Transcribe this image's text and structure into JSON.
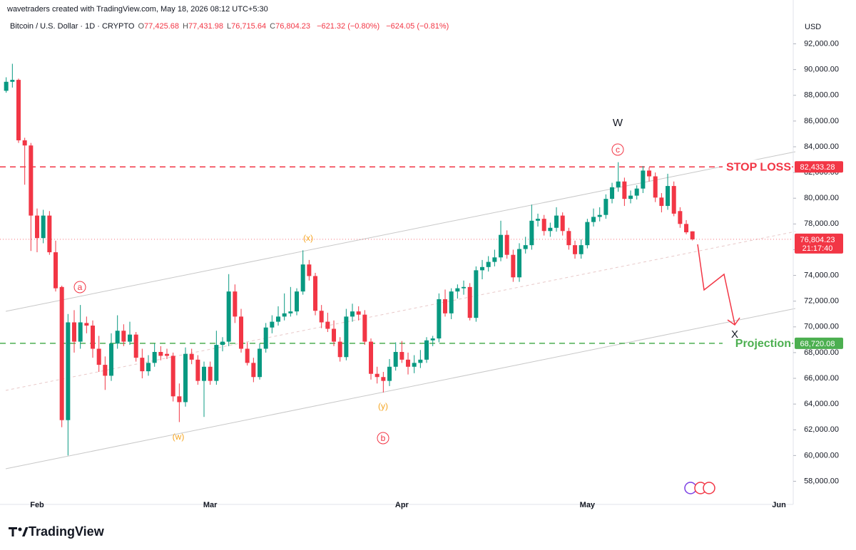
{
  "chart_data": {
    "type": "candlestick",
    "credit": "wavetraders created with TradingView.com, May 18, 2026 08:12 UTC+5:30",
    "symbol": "Bitcoin / U.S. Dollar · 1D · CRYPTO",
    "ohlc_letters": [
      "O",
      "H",
      "L",
      "C"
    ],
    "ohlc_labels": [
      "77,425.68",
      "77,431.98",
      "76,715.64",
      "76,804.23"
    ],
    "change_labels": [
      "−621.32 (−0.80%)",
      "−624.05 (−0.81%)"
    ],
    "currency": "USD",
    "up_color": "#089981",
    "down_color": "#f23645",
    "grid": false,
    "categories": [
      null,
      null,
      null,
      null,
      null,
      "Feb",
      null,
      null,
      null,
      null,
      null,
      null,
      null,
      null,
      null,
      null,
      null,
      null,
      null,
      null,
      null,
      null,
      null,
      null,
      null,
      null,
      null,
      null,
      null,
      null,
      null,
      null,
      null,
      "Mar",
      null,
      null,
      null,
      null,
      null,
      null,
      null,
      null,
      null,
      null,
      null,
      null,
      null,
      null,
      null,
      null,
      null,
      null,
      null,
      null,
      null,
      null,
      null,
      null,
      null,
      null,
      null,
      null,
      null,
      null,
      "Apr",
      null,
      null,
      null,
      null,
      null,
      null,
      null,
      null,
      null,
      null,
      null,
      null,
      null,
      null,
      null,
      null,
      null,
      null,
      null,
      null,
      null,
      null,
      null,
      null,
      null,
      null,
      null,
      null,
      null,
      "May",
      null,
      null,
      null,
      null,
      null,
      null,
      null,
      null,
      null,
      null,
      null,
      null,
      null,
      null,
      null,
      null,
      null,
      null,
      null,
      null,
      null,
      null,
      null,
      null,
      null,
      null,
      null,
      null,
      null,
      null,
      "Jun"
    ],
    "open": [
      88350,
      89050,
      89200,
      84500,
      84100,
      78650,
      76900,
      78650,
      75800,
      73100,
      62750,
      70350,
      68850,
      70300,
      70100,
      68300,
      67050,
      66200,
      68700,
      69700,
      68850,
      69400,
      67600,
      66550,
      67200,
      68050,
      67900,
      67750,
      64600,
      64150,
      67900,
      67450,
      65800,
      66900,
      65800,
      68600,
      68850,
      72750,
      70800,
      68300,
      67200,
      66100,
      68300,
      69950,
      70400,
      70800,
      71050,
      71200,
      72750,
      74850,
      73950,
      71250,
      70400,
      69850,
      68850,
      67650,
      70800,
      71200,
      70950,
      68850,
      66350,
      66100,
      65800,
      66900,
      68050,
      67450,
      66900,
      67200,
      67450,
      68950,
      69100,
      72150,
      71050,
      72750,
      73000,
      73100,
      70700,
      74400,
      74650,
      75050,
      75400,
      77150,
      75600,
      73850,
      76050,
      76350,
      78250,
      78400,
      77450,
      77700,
      78650,
      77450,
      76350,
      75650,
      76350,
      78150,
      78550,
      78700,
      79950,
      80850,
      81300,
      79950,
      80200,
      80750,
      82150,
      81700,
      80050,
      79400,
      80950,
      79000,
      78000,
      77425.68,
      null,
      null,
      null,
      null,
      null,
      null,
      null,
      null,
      null,
      null,
      null,
      null,
      null,
      null
    ],
    "high": [
      89400,
      90450,
      89300,
      84700,
      84300,
      79200,
      79100,
      79000,
      76700,
      73200,
      71000,
      71300,
      71700,
      70800,
      70500,
      69300,
      67700,
      69500,
      70900,
      70200,
      70400,
      69600,
      68300,
      67800,
      68700,
      68500,
      68300,
      68000,
      65600,
      68400,
      68300,
      67800,
      67300,
      67300,
      69700,
      69200,
      74100,
      73300,
      71400,
      68800,
      67600,
      68700,
      70300,
      70900,
      71600,
      72600,
      73100,
      73000,
      75950,
      75200,
      74200,
      71700,
      71100,
      70500,
      69200,
      71400,
      71800,
      71600,
      71300,
      69100,
      66900,
      66500,
      67500,
      68800,
      68900,
      68000,
      67800,
      68200,
      69200,
      69300,
      72600,
      72900,
      73000,
      73300,
      73600,
      73400,
      74700,
      75200,
      75500,
      76000,
      78250,
      77500,
      76000,
      76500,
      77000,
      79500,
      78800,
      78700,
      78100,
      79300,
      78900,
      77700,
      76700,
      76800,
      78400,
      79200,
      79300,
      80300,
      81200,
      82800,
      81600,
      80600,
      81000,
      82500,
      82400,
      82000,
      80400,
      81900,
      81300,
      79300,
      78300,
      77431.98,
      null,
      null,
      null,
      null,
      null,
      null,
      null,
      null,
      null,
      null,
      null,
      null,
      null,
      null
    ],
    "low": [
      88200,
      88600,
      84300,
      81050,
      75900,
      75800,
      76500,
      75600,
      72750,
      62200,
      60000,
      68000,
      68300,
      69500,
      67600,
      66500,
      65100,
      65800,
      68300,
      68500,
      68600,
      67300,
      66000,
      66200,
      66900,
      67400,
      67500,
      64200,
      62600,
      63800,
      67100,
      65500,
      63000,
      65500,
      65500,
      68100,
      68500,
      70300,
      68000,
      67000,
      65700,
      65900,
      68000,
      69500,
      70100,
      70500,
      70800,
      70900,
      72500,
      73600,
      70900,
      69900,
      69600,
      68500,
      67300,
      67400,
      70400,
      70500,
      68600,
      65900,
      65600,
      64900,
      65400,
      66600,
      67200,
      66300,
      66400,
      66800,
      67200,
      68500,
      68800,
      70800,
      70600,
      72200,
      72500,
      70500,
      70400,
      73700,
      74300,
      74700,
      75100,
      75300,
      73500,
      73500,
      75700,
      76000,
      77800,
      77100,
      77000,
      77400,
      77100,
      76000,
      75300,
      75300,
      76100,
      77800,
      78200,
      78400,
      79600,
      80500,
      79400,
      79600,
      79900,
      80400,
      81300,
      79700,
      78900,
      79100,
      78600,
      77700,
      77200,
      76715.64,
      null,
      null,
      null,
      null,
      null,
      null,
      null,
      null,
      null,
      null,
      null,
      null,
      null,
      null
    ],
    "close": [
      89050,
      89200,
      84500,
      84100,
      78650,
      76900,
      78650,
      75800,
      73000,
      62750,
      70350,
      68850,
      70350,
      70100,
      68300,
      67050,
      66200,
      68700,
      69700,
      68850,
      69400,
      67600,
      66550,
      67200,
      68050,
      67750,
      67750,
      64600,
      64150,
      67900,
      67450,
      65800,
      66900,
      65800,
      68600,
      68850,
      72750,
      70800,
      68300,
      67200,
      66100,
      68300,
      69950,
      70400,
      70800,
      71050,
      71200,
      72750,
      74850,
      73950,
      71250,
      70350,
      69850,
      68850,
      67650,
      70800,
      71200,
      70950,
      68850,
      66350,
      66100,
      65800,
      66900,
      68050,
      67450,
      66900,
      67200,
      67450,
      68950,
      69100,
      72150,
      71050,
      72750,
      73000,
      73100,
      70700,
      74400,
      74650,
      75050,
      75400,
      77150,
      75600,
      73850,
      76050,
      76350,
      78250,
      78400,
      77450,
      77700,
      78650,
      77450,
      76350,
      75650,
      76350,
      78150,
      78550,
      78700,
      79950,
      80850,
      81300,
      79950,
      80200,
      80750,
      82150,
      81700,
      80050,
      79400,
      80950,
      78800,
      78000,
      77350,
      76804.23,
      null,
      null,
      null,
      null,
      null,
      null,
      null,
      null,
      null,
      null,
      null,
      null,
      null,
      null
    ],
    "ylim": [
      56200,
      94300
    ],
    "yticks": [
      {
        "value": 58000,
        "label": "58,000.00"
      },
      {
        "value": 60000,
        "label": "60,000.00"
      },
      {
        "value": 62000,
        "label": "62,000.00"
      },
      {
        "value": 64000,
        "label": "64,000.00"
      },
      {
        "value": 66000,
        "label": "66,000.00"
      },
      {
        "value": 68000,
        "label": "68,000.00"
      },
      {
        "value": 70000,
        "label": "70,000.00"
      },
      {
        "value": 72000,
        "label": "72,000.00"
      },
      {
        "value": 74000,
        "label": "74,000.00"
      },
      {
        "value": 76000,
        "label": "76,000.00"
      },
      {
        "value": 78000,
        "label": "78,000.00"
      },
      {
        "value": 80000,
        "label": "80,000.00"
      },
      {
        "value": 82000,
        "label": "82,000.00"
      },
      {
        "value": 84000,
        "label": "84,000.00"
      },
      {
        "value": 86000,
        "label": "86,000.00"
      },
      {
        "value": 88000,
        "label": "88,000.00"
      },
      {
        "value": 90000,
        "label": "90,000.00"
      },
      {
        "value": 92000,
        "label": "92,000.00"
      }
    ],
    "price_lines": [
      {
        "label": "STOP LOSS",
        "value": 82433.28,
        "value_label": "82,433.28",
        "color": "#f23645"
      },
      {
        "label": "Projection",
        "value": 68720.08,
        "value_label": "68,720.08",
        "color": "#4caf50"
      }
    ],
    "last_price": {
      "value": 76804.23,
      "value_label": "76,804.23",
      "countdown": "21:17:40",
      "color": "#f23645"
    },
    "annotations": [
      "W",
      "c",
      "a",
      "b",
      "(x)",
      "(w)",
      "(y)",
      "X"
    ],
    "brand": "TradingView"
  }
}
